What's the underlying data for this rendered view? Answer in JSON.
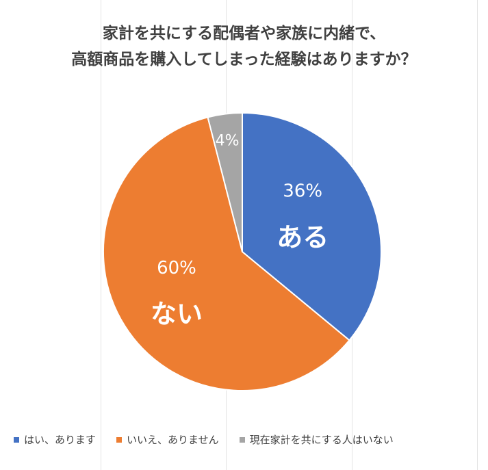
{
  "title_lines": [
    "家計を共にする配偶者や家族に内緒で、",
    "高額商品を購入してしまった経験はありますか？"
  ],
  "chart_data": {
    "type": "pie",
    "title": "家計を共にする配偶者や家族に内緒で、高額商品を購入してしまった経験はありますか？",
    "legend_position": "bottom",
    "slices": [
      {
        "name": "はい、あります",
        "value": 36,
        "label": "36%",
        "tag": "ある",
        "color": "#4472C4"
      },
      {
        "name": "いいえ、ありません",
        "value": 60,
        "label": "60%",
        "tag": "ない",
        "color": "#ED7D31"
      },
      {
        "name": "現在家計を共にする人はいない",
        "value": 4,
        "label": "4%",
        "tag": "",
        "color": "#A5A5A5"
      }
    ]
  }
}
